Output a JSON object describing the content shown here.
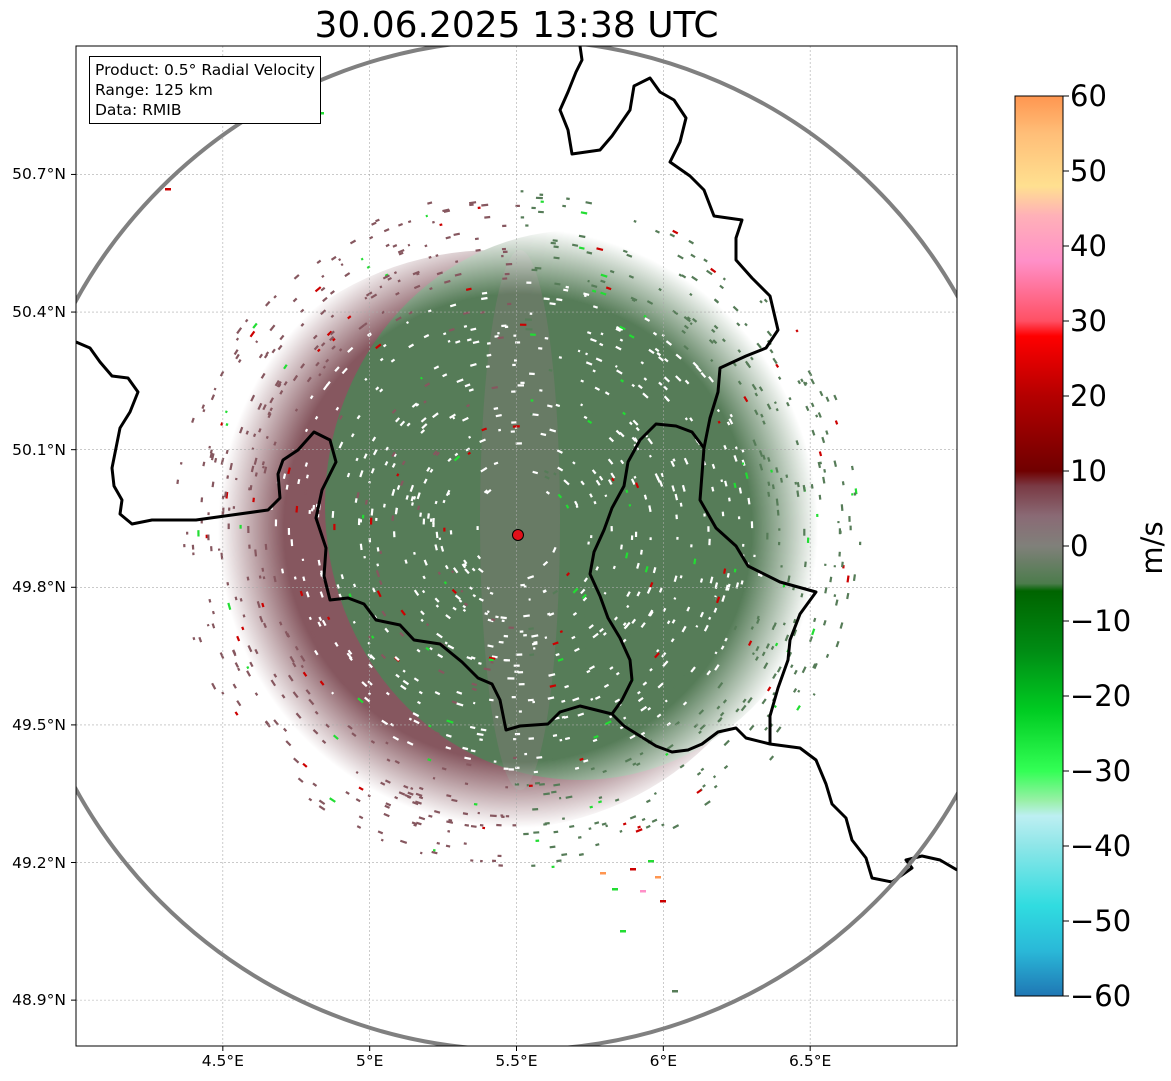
{
  "title": "30.06.2025 13:38 UTC",
  "info": {
    "product": "Product: 0.5° Radial Velocity",
    "range": "Range: 125 km",
    "source": "Data: RMIB"
  },
  "map": {
    "lon_range": [
      4.0,
      7.0
    ],
    "lat_range": [
      48.8,
      50.98
    ],
    "radar_site": {
      "lon": 5.505,
      "lat": 49.914
    },
    "range_ring_km": 125,
    "lat_ticks": [
      {
        "value": 48.9,
        "label": "48.9°N"
      },
      {
        "value": 49.2,
        "label": "49.2°N"
      },
      {
        "value": 49.5,
        "label": "49.5°N"
      },
      {
        "value": 49.8,
        "label": "49.8°N"
      },
      {
        "value": 50.1,
        "label": "50.1°N"
      },
      {
        "value": 50.4,
        "label": "50.4°N"
      },
      {
        "value": 50.7,
        "label": "50.7°N"
      }
    ],
    "lon_ticks": [
      {
        "value": 4.5,
        "label": "4.5°E"
      },
      {
        "value": 5.0,
        "label": "5°E"
      },
      {
        "value": 5.5,
        "label": "5.5°E"
      },
      {
        "value": 6.0,
        "label": "6°E"
      },
      {
        "value": 6.5,
        "label": "6.5°E"
      }
    ],
    "colors": {
      "inbound": "#567c58",
      "outbound": "#86575f",
      "border": "#000000",
      "range_ring": "#808080",
      "radar_site": "#e0101a"
    }
  },
  "colorbar": {
    "unit": "m/s",
    "range": [
      -60,
      60
    ],
    "ticks": [
      "60",
      "50",
      "40",
      "30",
      "20",
      "10",
      "0",
      "−10",
      "−20",
      "−30",
      "−40",
      "−50",
      "−60"
    ],
    "stops": [
      {
        "v": -60,
        "c": "#1f77b4"
      },
      {
        "v": -54,
        "c": "#2ab8d8"
      },
      {
        "v": -48,
        "c": "#30dce0"
      },
      {
        "v": -40,
        "c": "#8ee6e8"
      },
      {
        "v": -36,
        "c": "#bdeff2"
      },
      {
        "v": -34,
        "c": "#9af0a8"
      },
      {
        "v": -30,
        "c": "#33ff55"
      },
      {
        "v": -22,
        "c": "#00cc22"
      },
      {
        "v": -14,
        "c": "#008c14"
      },
      {
        "v": -6,
        "c": "#006400"
      },
      {
        "v": -5,
        "c": "#4c7c4c"
      },
      {
        "v": 0,
        "c": "#80807a"
      },
      {
        "v": 4,
        "c": "#8a6a75"
      },
      {
        "v": 8,
        "c": "#7a3a44"
      },
      {
        "v": 10,
        "c": "#700000"
      },
      {
        "v": 20,
        "c": "#b40000"
      },
      {
        "v": 28,
        "c": "#ff0000"
      },
      {
        "v": 30,
        "c": "#ff5064"
      },
      {
        "v": 38,
        "c": "#ff90c8"
      },
      {
        "v": 44,
        "c": "#ffb0b8"
      },
      {
        "v": 48,
        "c": "#ffe090"
      },
      {
        "v": 55,
        "c": "#ffbe78"
      },
      {
        "v": 60,
        "c": "#ff9650"
      }
    ]
  }
}
